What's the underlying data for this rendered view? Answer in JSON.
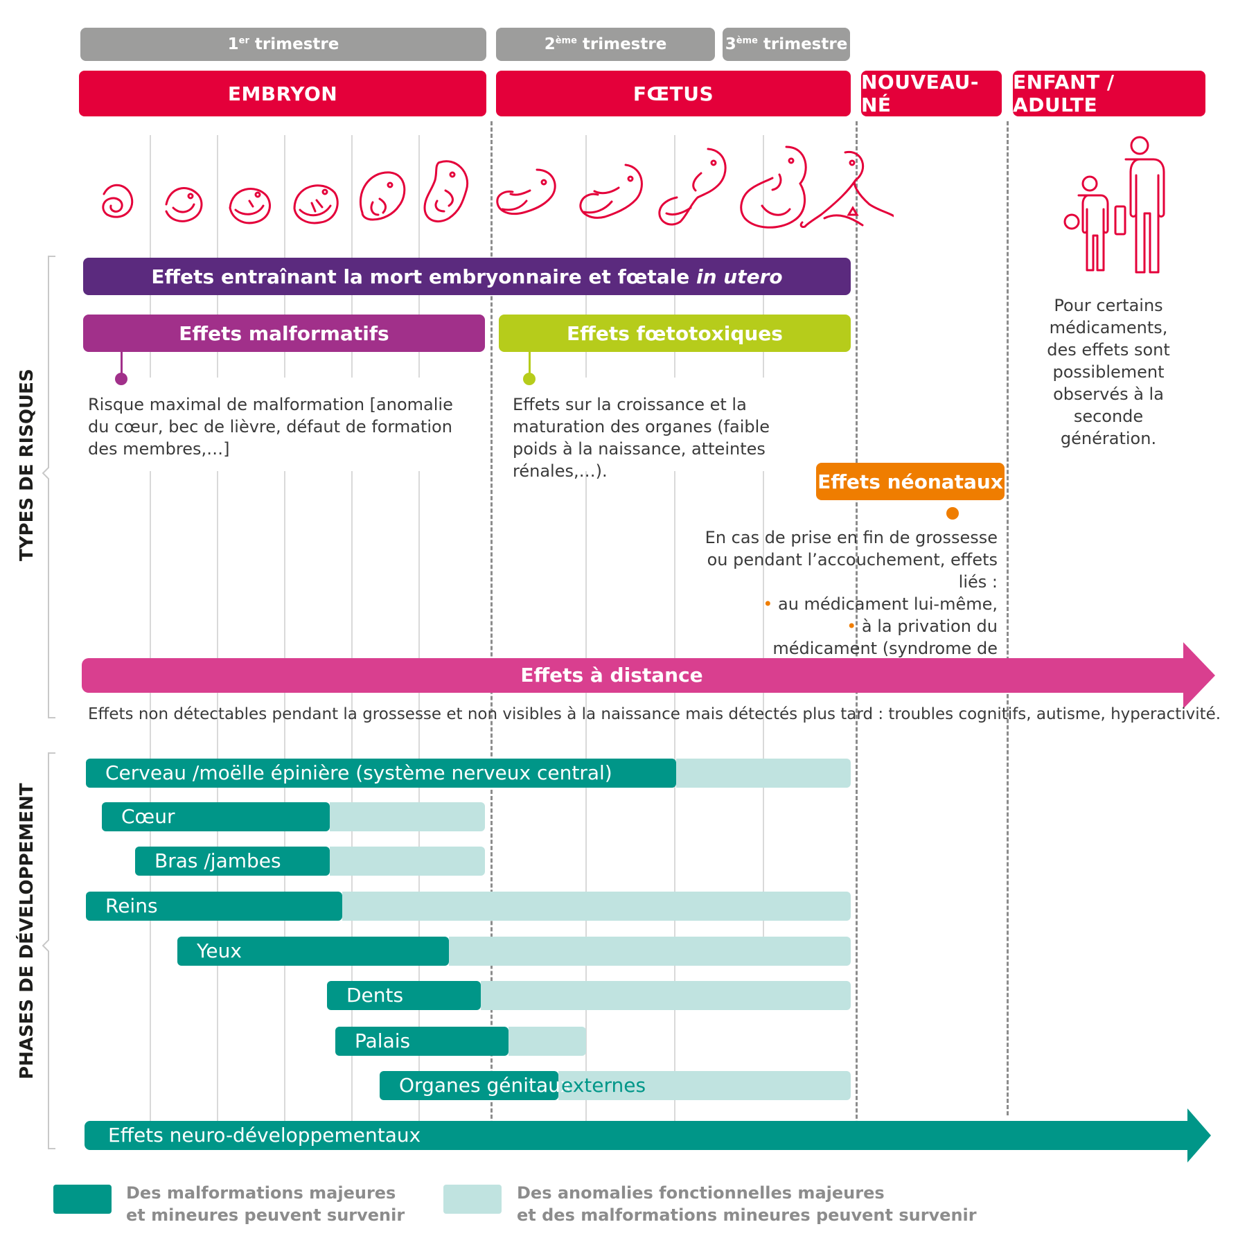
{
  "trimesters": [
    {
      "prefix": "1",
      "sup": "er",
      "suffix": " trimestre"
    },
    {
      "prefix": "2",
      "sup": "ème",
      "suffix": " trimestre"
    },
    {
      "prefix": "3",
      "sup": "ème",
      "suffix": " trimestre"
    }
  ],
  "stages": {
    "embryon": "EMBRYON",
    "foetus": "FŒTUS",
    "nouveau_ne": "NOUVEAU-NÉ",
    "enfant_adulte": "ENFANT / ADULTE"
  },
  "side_labels": {
    "risques": "TYPES DE RISQUES",
    "phases": "PHASES DE DÉVELOPPEMENT"
  },
  "risks": {
    "mort": {
      "text": "Effets entraînant la mort embryonnaire et fœtale ",
      "italic": "in utero",
      "color": "#5b2a7e"
    },
    "malformatifs": {
      "label": "Effets malformatifs",
      "color": "#a1308a",
      "description": "Risque maximal de malformation [anomalie du cœur, bec de lièvre, défaut de formation des membres,…]"
    },
    "foetotoxiques": {
      "label": "Effets fœtotoxiques",
      "color": "#b6cc1b",
      "description": "Effets sur la croissance et la maturation des organes (faible poids à la naissance, atteintes rénales,…)."
    },
    "neonataux": {
      "label": "Effets néonataux",
      "color": "#ef7d00",
      "description": "En cas de prise en fin de grossesse ou pendant l’accouchement, effets  liés :",
      "bullets": [
        "au médicament lui-même,",
        "à la privation du médicament (syndrome de sevrage)."
      ]
    },
    "distance": {
      "label": "Effets à distance",
      "color": "#d93f8f",
      "description": "Effets non détectables pendant la grossesse et non visibles à la naissance mais détectés plus tard : troubles cognitifs, autisme, hyperactivité."
    },
    "seconde_generation": "Pour certains médicaments, des effets sont possiblement observés à la seconde génération."
  },
  "organs": [
    {
      "label": "Cerveau /moëlle épinière (système nerveux central)"
    },
    {
      "label": "Cœur"
    },
    {
      "label": "Bras /jambes"
    },
    {
      "label": "Reins"
    },
    {
      "label": "Yeux"
    },
    {
      "label": "Dents"
    },
    {
      "label": "Palais"
    },
    {
      "label": "Organes génitaux",
      "label_light": "externes"
    }
  ],
  "neuro": {
    "label": "Effets neuro-développementaux"
  },
  "legend": {
    "major": {
      "line1": "Des malformations majeures",
      "line2": "et mineures peuvent survenir",
      "color": "#009688"
    },
    "functional": {
      "line1": "Des anomalies fonctionnelles majeures",
      "line2": "et des malformations mineures peuvent survenir",
      "color": "#c0e3e0"
    }
  },
  "icons": [
    "embryo-icon",
    "fetus-icon",
    "newborn-icon",
    "child-adult-icon"
  ]
}
